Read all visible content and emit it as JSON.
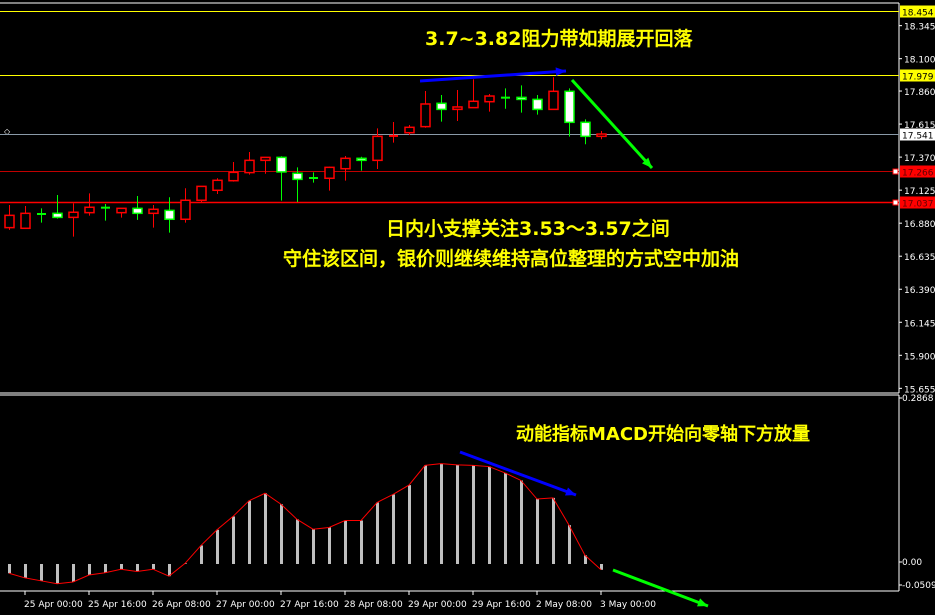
{
  "colors": {
    "background": "#000000",
    "bull_candle": "#ff0000",
    "bear_candle": "#00ff00",
    "bear_body": "#ffffff",
    "annotation_text": "#ffff00",
    "axis": "#ffffff",
    "histogram": "#c0c0c0",
    "signal_line": "#ff0000",
    "arrow_blue": "#0000ff",
    "arrow_green": "#00ff00"
  },
  "chart_data": [
    {
      "type": "candlestick",
      "ylim": [
        15.655,
        18.454
      ],
      "y_ticks": [
        "18.345",
        "18.100",
        "17.860",
        "17.615",
        "17.370",
        "17.125",
        "16.880",
        "16.635",
        "16.390",
        "16.145",
        "15.900",
        "15.655"
      ],
      "x_tick_labels": [
        "25 Apr 00:00",
        "25 Apr 16:00",
        "26 Apr 08:00",
        "27 Apr 00:00",
        "27 Apr 16:00",
        "28 Apr 08:00",
        "29 Apr 00:00",
        "29 Apr 16:00",
        "2 May 08:00",
        "3 May 00:00"
      ],
      "ohlc": [
        [
          16.847,
          17.015,
          16.83,
          16.938
        ],
        [
          16.842,
          17.007,
          16.842,
          16.953
        ],
        [
          16.948,
          16.99,
          16.884,
          16.948
        ],
        [
          16.953,
          17.089,
          16.914,
          16.923
        ],
        [
          16.923,
          17.027,
          16.78,
          16.961
        ],
        [
          16.958,
          17.101,
          16.936,
          16.998
        ],
        [
          16.995,
          17.022,
          16.899,
          16.995
        ],
        [
          16.958,
          16.99,
          16.921,
          16.99
        ],
        [
          16.99,
          17.082,
          16.904,
          16.953
        ],
        [
          16.953,
          17.015,
          16.847,
          16.983
        ],
        [
          16.975,
          17.072,
          16.81,
          16.909
        ],
        [
          16.909,
          17.139,
          16.884,
          17.05
        ],
        [
          17.05,
          17.156,
          17.032,
          17.153
        ],
        [
          17.124,
          17.213,
          17.096,
          17.198
        ],
        [
          17.195,
          17.334,
          17.188,
          17.257
        ],
        [
          17.255,
          17.408,
          17.24,
          17.346
        ],
        [
          17.346,
          17.368,
          17.247,
          17.368
        ],
        [
          17.368,
          17.376,
          17.047,
          17.26
        ],
        [
          17.25,
          17.294,
          17.037,
          17.205
        ],
        [
          17.215,
          17.257,
          17.181,
          17.215
        ],
        [
          17.213,
          17.299,
          17.121,
          17.294
        ],
        [
          17.284,
          17.378,
          17.196,
          17.361
        ],
        [
          17.361,
          17.373,
          17.27,
          17.346
        ],
        [
          17.346,
          17.583,
          17.282,
          17.524
        ],
        [
          17.527,
          17.63,
          17.477,
          17.527
        ],
        [
          17.551,
          17.608,
          17.534,
          17.591
        ],
        [
          17.596,
          17.86,
          17.588,
          17.764
        ],
        [
          17.769,
          17.831,
          17.633,
          17.724
        ],
        [
          17.724,
          17.868,
          17.638,
          17.742
        ],
        [
          17.737,
          17.947,
          17.737,
          17.784
        ],
        [
          17.781,
          17.838,
          17.707,
          17.823
        ],
        [
          17.811,
          17.88,
          17.729,
          17.811
        ],
        [
          17.813,
          17.902,
          17.7,
          17.798
        ],
        [
          17.798,
          17.831,
          17.685,
          17.724
        ],
        [
          17.724,
          17.962,
          17.724,
          17.858
        ],
        [
          17.858,
          17.88,
          17.522,
          17.628
        ],
        [
          17.628,
          17.65,
          17.465,
          17.524
        ],
        [
          17.524,
          17.564,
          17.502,
          17.541
        ]
      ],
      "price_levels": [
        {
          "label": "18.454",
          "color": "#ffff00",
          "label_bg": "#ffff00",
          "label_fg": "#000000"
        },
        {
          "label": "17.979",
          "color": "#ffff00",
          "label_bg": "#ffff00",
          "label_fg": "#000000"
        },
        {
          "label": "17.541",
          "color": "#8a9aa8",
          "label_bg": "#ffffff",
          "label_fg": "#000000"
        },
        {
          "label": "17.266",
          "color": "#c00000",
          "label_bg": "#ff0000",
          "label_fg": "#600000"
        },
        {
          "label": "17.037",
          "color": "#ff0000",
          "label_bg": "#ff0000",
          "label_fg": "#600000"
        }
      ]
    },
    {
      "type": "bar",
      "name": "MACD",
      "ylim": [
        -0.0509,
        0.2868
      ],
      "y_ticks": [
        "0.2868",
        "0.00",
        "-0.0509"
      ],
      "values": [
        -0.016,
        -0.024,
        -0.029,
        -0.034,
        -0.031,
        -0.019,
        -0.015,
        -0.009,
        -0.013,
        -0.009,
        -0.021,
        0.001,
        0.032,
        0.059,
        0.082,
        0.109,
        0.122,
        0.103,
        0.077,
        0.06,
        0.063,
        0.075,
        0.075,
        0.106,
        0.12,
        0.136,
        0.17,
        0.173,
        0.171,
        0.17,
        0.168,
        0.157,
        0.144,
        0.112,
        0.114,
        0.067,
        0.015,
        -0.01
      ],
      "signal": [
        -0.016,
        -0.024,
        -0.029,
        -0.034,
        -0.031,
        -0.019,
        -0.015,
        -0.009,
        -0.013,
        -0.009,
        -0.021,
        0.001,
        0.032,
        0.059,
        0.082,
        0.109,
        0.122,
        0.103,
        0.077,
        0.06,
        0.063,
        0.075,
        0.075,
        0.106,
        0.12,
        0.136,
        0.17,
        0.173,
        0.171,
        0.17,
        0.168,
        0.157,
        0.144,
        0.112,
        0.114,
        0.067,
        0.015,
        -0.01
      ]
    }
  ],
  "annotations": {
    "resistance": "3.7~3.82阻力带如期展开回落",
    "support_1": "日内小支撑关注3.53～3.57之间",
    "support_2": "守住该区间，银价则继续维持高位整理的方式空中加油",
    "macd": "动能指标MACD开始向零轴下方放量"
  }
}
